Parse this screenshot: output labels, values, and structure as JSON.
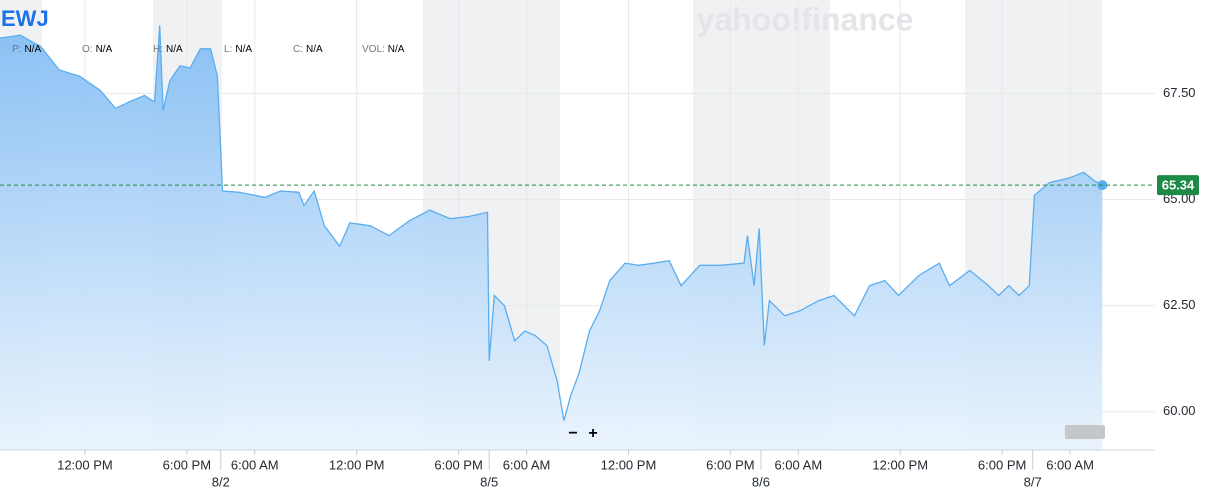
{
  "chart_data": {
    "type": "area",
    "title": "EWJ",
    "watermark": "yahoo!finance",
    "quote_fields": [
      {
        "label": "P:",
        "value": "N/A"
      },
      {
        "label": "O:",
        "value": "N/A"
      },
      {
        "label": "H:",
        "value": "N/A"
      },
      {
        "label": "L:",
        "value": "N/A"
      },
      {
        "label": "C:",
        "value": "N/A"
      },
      {
        "label": "VOL:",
        "value": "N/A"
      }
    ],
    "zoom_controls": [
      "−",
      "+"
    ],
    "color": "#5aaef0",
    "x": [
      0,
      1.2,
      2.4,
      3.5,
      4.7,
      5.9,
      6.8,
      7.6,
      8.5,
      9.1,
      9.4,
      9.6,
      10.0,
      10.6,
      11.2,
      11.8,
      12.4,
      12.8,
      13.1,
      14.1,
      15.6,
      16.5,
      17.6,
      17.9,
      18.5,
      19.1,
      20.0,
      20.6,
      21.8,
      22.9,
      24.1,
      25.3,
      26.5,
      27.6,
      28.7,
      28.8,
      29.1,
      29.7,
      30.3,
      30.9,
      31.5,
      32.2,
      32.8,
      33.2,
      33.6,
      34.1,
      34.7,
      35.3,
      35.9,
      36.8,
      37.6,
      38.5,
      39.4,
      40.1,
      41.2,
      42.4,
      43.8,
      44.0,
      44.4,
      44.7,
      45.0,
      45.3,
      46.2,
      47.1,
      48.2,
      49.1,
      50.3,
      51.2,
      52.1,
      52.9,
      54.1,
      55.3,
      55.9,
      57.1,
      58.2,
      58.8,
      59.4,
      60.0,
      60.6,
      60.9,
      61.8,
      62.9,
      63.8,
      64.4,
      64.9
    ],
    "values": [
      68.8,
      68.87,
      68.6,
      68.05,
      67.9,
      67.57,
      67.15,
      67.3,
      67.45,
      67.3,
      69.1,
      67.1,
      67.8,
      68.15,
      68.1,
      68.55,
      68.55,
      67.9,
      65.2,
      65.17,
      65.05,
      65.2,
      65.17,
      64.86,
      65.2,
      64.38,
      63.9,
      64.45,
      64.38,
      64.15,
      64.5,
      64.75,
      64.55,
      64.6,
      64.7,
      61.2,
      62.74,
      62.5,
      61.67,
      61.9,
      61.8,
      61.56,
      60.73,
      59.79,
      60.38,
      60.92,
      61.9,
      62.38,
      63.09,
      63.5,
      63.45,
      63.5,
      63.56,
      62.97,
      63.45,
      63.45,
      63.5,
      64.15,
      62.97,
      64.32,
      61.56,
      62.62,
      62.26,
      62.38,
      62.62,
      62.74,
      62.26,
      62.97,
      63.09,
      62.74,
      63.21,
      63.5,
      62.97,
      63.33,
      62.97,
      62.74,
      62.97,
      62.74,
      62.97,
      65.1,
      65.4,
      65.5,
      65.64,
      65.45,
      65.34
    ],
    "last_price": 65.34,
    "last_price_color": "#1e8a48",
    "xlim": [
      0,
      68
    ],
    "xticks": [
      {
        "value": 5,
        "label": "12:00 PM"
      },
      {
        "value": 11,
        "label": "6:00 PM"
      },
      {
        "value": 15,
        "label": "6:00 AM"
      },
      {
        "value": 21,
        "label": "12:00 PM"
      },
      {
        "value": 27,
        "label": "6:00 PM"
      },
      {
        "value": 31,
        "label": "6:00 AM"
      },
      {
        "value": 37,
        "label": "12:00 PM"
      },
      {
        "value": 43,
        "label": "6:00 PM"
      },
      {
        "value": 47,
        "label": "6:00 AM"
      },
      {
        "value": 53,
        "label": "12:00 PM"
      },
      {
        "value": 59,
        "label": "6:00 PM"
      },
      {
        "value": 63,
        "label": "6:00 AM"
      }
    ],
    "date_labels": [
      {
        "value": 13,
        "label": "8/2"
      },
      {
        "value": 28.8,
        "label": "8/5"
      },
      {
        "value": 44.8,
        "label": "8/6"
      },
      {
        "value": 60.8,
        "label": "8/7"
      }
    ],
    "ylim": [
      59.1,
      69.7
    ],
    "yticks": [
      {
        "value": 60,
        "label": "60.00"
      },
      {
        "value": 62.5,
        "label": "62.50"
      },
      {
        "value": 65,
        "label": "65.00"
      },
      {
        "value": 67.5,
        "label": "67.50"
      }
    ],
    "grid": true
  }
}
